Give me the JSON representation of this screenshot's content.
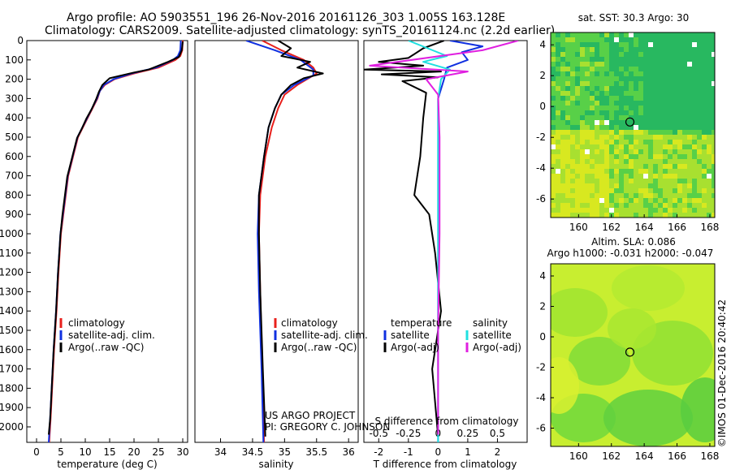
{
  "header": {
    "line1": "Argo profile: AO 5903551_196 26-Nov-2016 20161126_303 1.005S 163.128E",
    "line2": "Climatology: CARS2009. Satellite-adjusted climatology: synTS_20161124.nc (2.2d earlier)"
  },
  "colors": {
    "climatology": "#e8201c",
    "satellite": "#1030e0",
    "argo": "#000000",
    "salinity_satellite": "#20e0e0",
    "salinity_argo": "#e020e0"
  },
  "credits": {
    "project": "US ARGO PROJECT",
    "pi": "PI: GREGORY C. JOHNSON",
    "imos": "©IMOS 01-Dec-2016 20:40:42"
  },
  "chart_data": [
    {
      "id": "temperature",
      "type": "line",
      "xlabel": "temperature (deg C)",
      "ylabel": "",
      "xlim": [
        -2,
        31
      ],
      "ylim": [
        2080,
        0
      ],
      "xticks": [
        0,
        5,
        10,
        15,
        20,
        25,
        30
      ],
      "yticks": [
        0,
        100,
        200,
        300,
        400,
        500,
        600,
        700,
        800,
        900,
        1000,
        1100,
        1200,
        1300,
        1400,
        1500,
        1600,
        1700,
        1800,
        1900,
        2000
      ],
      "legend": [
        "climatology",
        "satellite-adj. clim.",
        "Argo(..raw -QC)"
      ],
      "series": [
        {
          "name": "climatology",
          "color_key": "climatology",
          "points": [
            [
              30.0,
              0
            ],
            [
              29.9,
              50
            ],
            [
              29.5,
              80
            ],
            [
              28.5,
              100
            ],
            [
              25,
              140
            ],
            [
              20,
              170
            ],
            [
              16,
              200
            ],
            [
              14,
              230
            ],
            [
              13,
              260
            ],
            [
              12.5,
              300
            ],
            [
              11.5,
              350
            ],
            [
              10.5,
              400
            ],
            [
              9.5,
              450
            ],
            [
              8.5,
              500
            ],
            [
              7.5,
              600
            ],
            [
              7,
              650
            ],
            [
              6.5,
              700
            ],
            [
              6,
              800
            ],
            [
              5.5,
              900
            ],
            [
              5,
              1000
            ],
            [
              4.5,
              1200
            ],
            [
              4.1,
              1400
            ],
            [
              3.6,
              1600
            ],
            [
              3.2,
              1800
            ],
            [
              2.9,
              1950
            ],
            [
              2.6,
              2080
            ]
          ]
        },
        {
          "name": "satellite-adj. clim.",
          "color_key": "satellite",
          "points": [
            [
              29.6,
              0
            ],
            [
              29.5,
              50
            ],
            [
              29.0,
              80
            ],
            [
              28.0,
              100
            ],
            [
              24.5,
              140
            ],
            [
              19.5,
              170
            ],
            [
              15.8,
              200
            ],
            [
              13.8,
              230
            ],
            [
              13,
              260
            ],
            [
              12.4,
              300
            ],
            [
              11.4,
              350
            ],
            [
              10.4,
              400
            ],
            [
              9.4,
              450
            ],
            [
              8.4,
              500
            ],
            [
              7.4,
              600
            ],
            [
              6.9,
              650
            ],
            [
              6.4,
              700
            ],
            [
              5.9,
              800
            ],
            [
              5.4,
              900
            ],
            [
              4.9,
              1000
            ],
            [
              4.4,
              1200
            ],
            [
              4.0,
              1400
            ],
            [
              3.5,
              1600
            ],
            [
              3.1,
              1800
            ],
            [
              2.8,
              1950
            ],
            [
              2.5,
              2080
            ]
          ]
        },
        {
          "name": "Argo(..raw -QC)",
          "color_key": "argo",
          "points": [
            [
              30.0,
              5
            ],
            [
              29.8,
              50
            ],
            [
              29.2,
              85
            ],
            [
              27,
              110
            ],
            [
              23,
              150
            ],
            [
              20,
              165
            ],
            [
              15,
              195
            ],
            [
              13.5,
              230
            ],
            [
              12.8,
              265
            ],
            [
              12.2,
              305
            ],
            [
              11.3,
              355
            ],
            [
              10.2,
              405
            ],
            [
              9.3,
              455
            ],
            [
              8.3,
              505
            ],
            [
              7.3,
              605
            ],
            [
              6.8,
              655
            ],
            [
              6.3,
              705
            ],
            [
              5.8,
              805
            ],
            [
              5.3,
              905
            ],
            [
              4.9,
              1005
            ],
            [
              4.4,
              1205
            ],
            [
              4.0,
              1405
            ],
            [
              3.5,
              1605
            ],
            [
              3.1,
              1805
            ],
            [
              2.8,
              1955
            ],
            [
              2.5,
              2040
            ]
          ]
        }
      ]
    },
    {
      "id": "salinity",
      "type": "line",
      "xlabel": "salinity",
      "xlim": [
        33.6,
        36.15
      ],
      "ylim": [
        2080,
        0
      ],
      "xticks": [
        34,
        34.5,
        35,
        35.5,
        36
      ],
      "legend": [
        "climatology",
        "satellite-adj. clim.",
        "Argo(..raw -QC)"
      ],
      "series": [
        {
          "name": "climatology",
          "color_key": "climatology",
          "points": [
            [
              34.65,
              0
            ],
            [
              34.95,
              50
            ],
            [
              35.3,
              100
            ],
            [
              35.45,
              140
            ],
            [
              35.5,
              170
            ],
            [
              35.2,
              230
            ],
            [
              35.0,
              280
            ],
            [
              34.9,
              350
            ],
            [
              34.8,
              450
            ],
            [
              34.7,
              600
            ],
            [
              34.62,
              800
            ],
            [
              34.6,
              1000
            ],
            [
              34.62,
              1300
            ],
            [
              34.65,
              1700
            ],
            [
              34.68,
              2080
            ]
          ]
        },
        {
          "name": "satellite-adj. clim.",
          "color_key": "satellite",
          "points": [
            [
              34.4,
              0
            ],
            [
              34.85,
              50
            ],
            [
              35.25,
              100
            ],
            [
              35.45,
              150
            ],
            [
              35.45,
              180
            ],
            [
              35.15,
              230
            ],
            [
              34.95,
              280
            ],
            [
              34.85,
              350
            ],
            [
              34.75,
              450
            ],
            [
              34.68,
              600
            ],
            [
              34.6,
              800
            ],
            [
              34.58,
              1000
            ],
            [
              34.6,
              1300
            ],
            [
              34.64,
              1700
            ],
            [
              34.67,
              2080
            ]
          ]
        },
        {
          "name": "Argo(..raw -QC)",
          "color_key": "argo",
          "points": [
            [
              34.9,
              0
            ],
            [
              35.1,
              40
            ],
            [
              34.95,
              80
            ],
            [
              35.4,
              110
            ],
            [
              35.2,
              140
            ],
            [
              35.6,
              170
            ],
            [
              35.3,
              195
            ],
            [
              35.1,
              230
            ],
            [
              34.95,
              280
            ],
            [
              34.85,
              350
            ],
            [
              34.75,
              450
            ],
            [
              34.68,
              600
            ],
            [
              34.6,
              800
            ],
            [
              34.6,
              1000
            ],
            [
              34.62,
              1300
            ],
            [
              34.66,
              1700
            ],
            [
              34.7,
              2050
            ]
          ]
        }
      ]
    },
    {
      "id": "difference",
      "type": "line",
      "xlabel": "T difference from climatology",
      "xlabel_top": "S difference from climatology",
      "xlim": [
        -2.5,
        3
      ],
      "ylim": [
        2080,
        0
      ],
      "xticks": [
        -2,
        -1,
        0,
        1,
        2
      ],
      "xticks_top_labels": [
        "-0.5",
        "-0.25",
        "0",
        "0.25",
        "0.5"
      ],
      "legend_titles": [
        "temperature",
        "salinity"
      ],
      "legend": [
        "satellite",
        "Argo(-adj)",
        "satellite",
        "Argo(-adj)"
      ],
      "series": [
        {
          "name": "temperature satellite",
          "color_key": "satellite",
          "points": [
            [
              0.4,
              0
            ],
            [
              1.5,
              30
            ],
            [
              0.8,
              60
            ],
            [
              1.0,
              100
            ],
            [
              0.3,
              140
            ],
            [
              0.2,
              200
            ],
            [
              0.0,
              300
            ],
            [
              0.0,
              600
            ],
            [
              0.0,
              1000
            ],
            [
              0.0,
              1500
            ],
            [
              0.0,
              2080
            ]
          ]
        },
        {
          "name": "temperature Argo(-adj)",
          "color_key": "argo",
          "points": [
            [
              0.2,
              0
            ],
            [
              -0.5,
              40
            ],
            [
              -1.0,
              90
            ],
            [
              -2.0,
              110
            ],
            [
              -0.5,
              130
            ],
            [
              -2.5,
              150
            ],
            [
              0.1,
              160
            ],
            [
              -1.9,
              175
            ],
            [
              0.0,
              190
            ],
            [
              -1.2,
              210
            ],
            [
              -0.4,
              270
            ],
            [
              -0.5,
              400
            ],
            [
              -0.6,
              600
            ],
            [
              -0.8,
              800
            ],
            [
              -0.3,
              900
            ],
            [
              -0.1,
              1100
            ],
            [
              0.1,
              1400
            ],
            [
              -0.2,
              1700
            ],
            [
              0.0,
              2050
            ]
          ]
        },
        {
          "name": "salinity satellite",
          "color_key": "salinity_satellite",
          "points": [
            [
              -1.0,
              0
            ],
            [
              0.3,
              80
            ],
            [
              -0.5,
              110
            ],
            [
              0.4,
              150
            ],
            [
              0.1,
              200
            ],
            [
              0.0,
              300
            ],
            [
              0.0,
              800
            ],
            [
              0.0,
              2080
            ]
          ]
        },
        {
          "name": "salinity Argo(-adj)",
          "color_key": "salinity_argo",
          "points": [
            [
              2.7,
              0
            ],
            [
              1.5,
              50
            ],
            [
              -2.3,
              130
            ],
            [
              1.0,
              160
            ],
            [
              -0.4,
              200
            ],
            [
              0.0,
              280
            ],
            [
              0.05,
              500
            ],
            [
              0.05,
              1000
            ],
            [
              0.0,
              1500
            ],
            [
              0.0,
              2040
            ]
          ]
        }
      ]
    },
    {
      "id": "sst-map",
      "type": "heatmap",
      "title": "sat. SST: 30.3 Argo: 30",
      "xlim": [
        158.3,
        168.3
      ],
      "ylim": [
        -7.2,
        4.8
      ],
      "xticks": [
        160,
        162,
        164,
        166,
        168
      ],
      "yticks": [
        4,
        2,
        0,
        -2,
        -4,
        -6
      ],
      "marker": {
        "lon": 163.128,
        "lat": -1.005
      }
    },
    {
      "id": "sla-map",
      "type": "heatmap",
      "title": "Altim. SLA: 0.086",
      "subtitle": "Argo h1000: -0.031 h2000: -0.047",
      "xlim": [
        158.3,
        168.3
      ],
      "ylim": [
        -7.2,
        4.8
      ],
      "xticks": [
        160,
        162,
        164,
        166,
        168
      ],
      "yticks": [
        4,
        2,
        0,
        -2,
        -4,
        -6
      ],
      "marker": {
        "lon": 163.128,
        "lat": -1.005
      }
    }
  ]
}
